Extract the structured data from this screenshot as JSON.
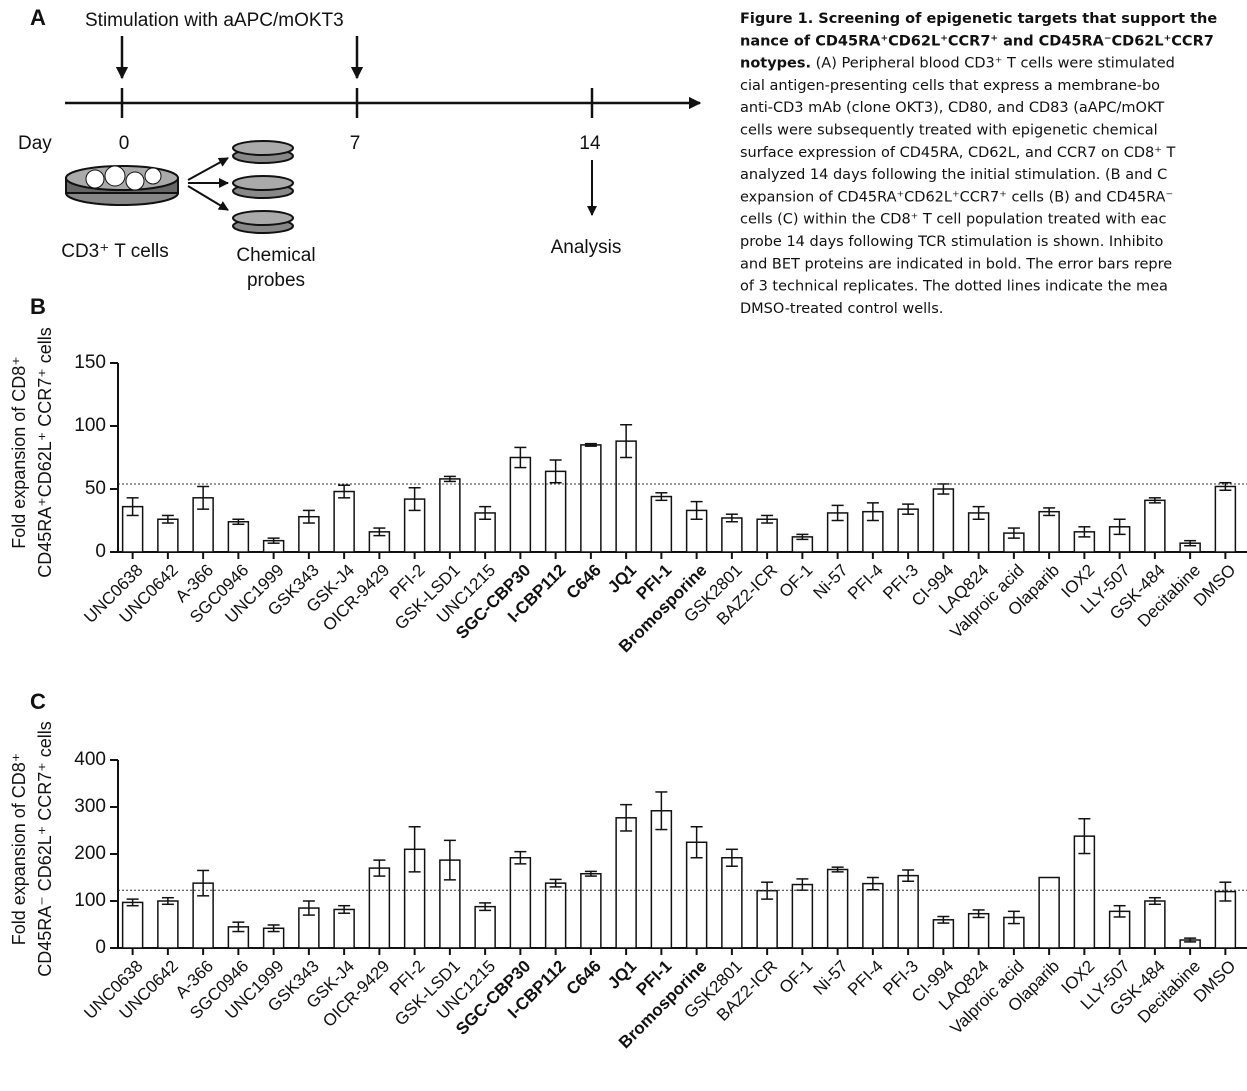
{
  "diagram": {
    "panel": "A",
    "stimulation": "Stimulation with aAPC/mOKT3",
    "day": "Day",
    "days": [
      "0",
      "7",
      "14"
    ],
    "analysis": "Analysis",
    "cells": "CD3⁺ T cells",
    "probes": [
      "Chemical",
      "probes"
    ]
  },
  "caption": {
    "lines": [
      [
        {
          "text": "Figure 1. Screening of epigenetic targets that support the",
          "bold": true
        }
      ],
      [
        {
          "text": "nance of CD45RA⁺CD62L⁺CCR7⁺ and CD45RA⁻CD62L⁺CCR7",
          "bold": true
        }
      ],
      [
        {
          "text": "notypes.",
          "bold": true
        },
        {
          "text": " (A) Peripheral blood CD3⁺ T cells were stimulated",
          "bold": false
        }
      ],
      [
        {
          "text": "cial antigen-presenting cells that express a membrane-bo",
          "bold": false
        }
      ],
      [
        {
          "text": "anti-CD3 mAb (clone OKT3), CD80, and CD83 (aAPC/mOKT",
          "bold": false
        }
      ],
      [
        {
          "text": "cells were subsequently treated with epigenetic chemical",
          "bold": false
        }
      ],
      [
        {
          "text": "surface expression of CD45RA, CD62L, and CCR7 on CD8⁺ T",
          "bold": false
        }
      ],
      [
        {
          "text": "analyzed 14 days following the initial stimulation. (B and C",
          "bold": false
        }
      ],
      [
        {
          "text": "expansion of CD45RA⁺CD62L⁺CCR7⁺ cells (B) and CD45RA⁻",
          "bold": false
        }
      ],
      [
        {
          "text": "cells (C) within the CD8⁺ T cell population treated with eac",
          "bold": false
        }
      ],
      [
        {
          "text": "probe 14 days following TCR stimulation is shown. Inhibito",
          "bold": false
        }
      ],
      [
        {
          "text": "and BET proteins are indicated in bold. The error bars repre",
          "bold": false
        }
      ],
      [
        {
          "text": "of 3 technical replicates. The dotted lines indicate the mea",
          "bold": false
        }
      ],
      [
        {
          "text": "DMSO-treated control wells.",
          "bold": false
        }
      ]
    ]
  },
  "chart_data": [
    {
      "type": "bar",
      "panel": "B",
      "ylabel": [
        "Fold expansion of CD8⁺",
        "CD45RA⁺CD62L⁺ CCR7⁺ cells"
      ],
      "categories": [
        "UNC0638",
        "UNC0642",
        "A-366",
        "SGC0946",
        "UNC1999",
        "GSK343",
        "GSK-J4",
        "OICR-9429",
        "PFI-2",
        "GSK-LSD1",
        "UNC1215",
        "SGC-CBP30",
        "I-CBP112",
        "C646",
        "JQ1",
        "PFI-1",
        "Bromosporine",
        "GSK2801",
        "BAZ2-ICR",
        "OF-1",
        "Ni-57",
        "PFI-4",
        "PFI-3",
        "CI-994",
        "LAQ824",
        "Valproic acid",
        "Olaparib",
        "IOX2",
        "LLY-507",
        "GSK-484",
        "Decitabine",
        "DMSO"
      ],
      "bold_indices": [
        11,
        12,
        13,
        14,
        15,
        16
      ],
      "values": [
        36,
        26,
        43,
        24,
        9,
        28,
        48,
        16,
        42,
        58,
        31,
        75,
        64,
        85,
        88,
        44,
        33,
        27,
        26,
        12,
        31,
        32,
        34,
        50,
        31,
        15,
        32,
        16,
        20,
        41,
        7,
        52
      ],
      "errors": [
        7,
        3,
        9,
        2,
        2,
        5,
        5,
        3,
        9,
        2,
        5,
        8,
        9,
        1,
        13,
        3,
        7,
        3,
        3,
        2,
        6,
        7,
        4,
        4,
        5,
        4,
        3,
        4,
        6,
        2,
        2,
        3
      ],
      "color": "#ffffff",
      "reference_line": 54,
      "ylim": [
        0,
        150
      ],
      "yticks": [
        0,
        50,
        100,
        150
      ]
    },
    {
      "type": "bar",
      "panel": "C",
      "ylabel": [
        "Fold expansion of CD8⁺",
        "CD45RA⁻ CD62L⁺ CCR7⁺ cells"
      ],
      "categories": [
        "UNC0638",
        "UNC0642",
        "A-366",
        "SGC0946",
        "UNC1999",
        "GSK343",
        "GSK-J4",
        "OICR-9429",
        "PFI-2",
        "GSK-LSD1",
        "UNC1215",
        "SGC-CBP30",
        "I-CBP112",
        "C646",
        "JQ1",
        "PFI-1",
        "Bromosporine",
        "GSK2801",
        "BAZ2-ICR",
        "OF-1",
        "Ni-57",
        "PFI-4",
        "PFI-3",
        "CI-994",
        "LAQ824",
        "Valproic acid",
        "Olaparib",
        "IOX2",
        "LLY-507",
        "GSK-484",
        "Decitabine",
        "DMSO"
      ],
      "bold_indices": [
        11,
        12,
        13,
        14,
        15,
        16
      ],
      "values": [
        97,
        100,
        138,
        45,
        42,
        85,
        82,
        170,
        210,
        187,
        88,
        192,
        138,
        158,
        277,
        292,
        225,
        192,
        122,
        135,
        167,
        137,
        154,
        60,
        73,
        65,
        150,
        238,
        78,
        100,
        17,
        120
      ],
      "errors": [
        7,
        7,
        27,
        10,
        7,
        15,
        8,
        17,
        48,
        42,
        8,
        13,
        8,
        5,
        28,
        40,
        33,
        18,
        18,
        12,
        5,
        13,
        12,
        7,
        8,
        13,
        null,
        37,
        12,
        7,
        4,
        20
      ],
      "color": "#ffffff",
      "reference_line": 123,
      "ylim": [
        0,
        400
      ],
      "yticks": [
        0,
        100,
        200,
        300,
        400
      ]
    }
  ]
}
